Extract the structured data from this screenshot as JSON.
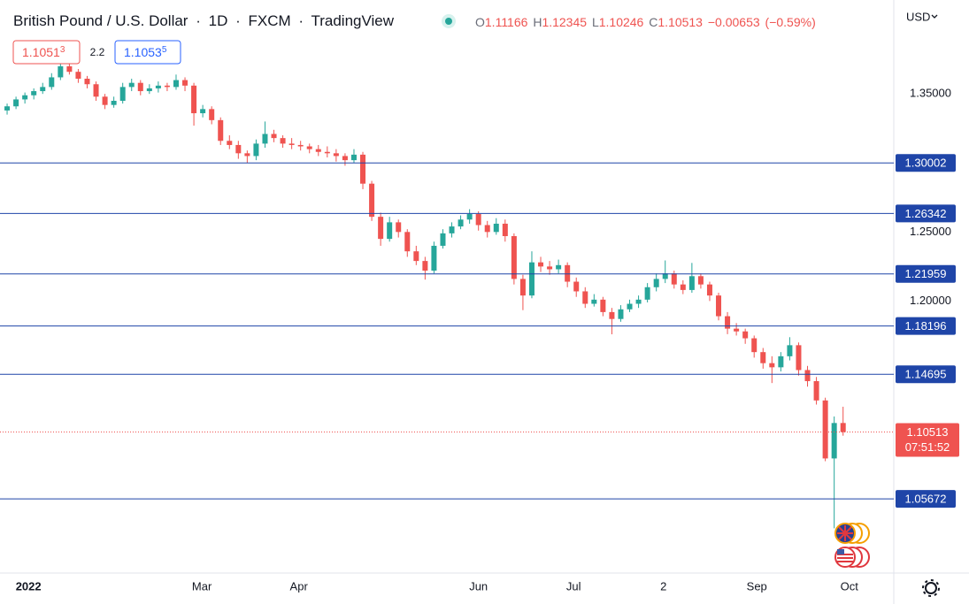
{
  "header": {
    "symbol": "British Pound / U.S. Dollar",
    "separator": "·",
    "interval": "1D",
    "exchange": "FXCM",
    "source": "TradingView",
    "open_label": "O",
    "high_label": "H",
    "low_label": "L",
    "close_label": "C",
    "change": {
      "value": -0.00653,
      "label": "−0.00653"
    },
    "change_pct": {
      "value": -0.59,
      "label": "(−0.59%)"
    },
    "sell": "1.1051",
    "sell_pip": "3",
    "spread": "2.2",
    "buy": "1.1053",
    "buy_pip": "5",
    "currency": "USD"
  },
  "chart_data": {
    "type": "candlestick",
    "open": [
      1.338,
      1.341,
      1.346,
      1.349,
      1.352,
      1.355,
      1.362,
      1.37,
      1.366,
      1.361,
      1.357,
      1.348,
      1.342,
      1.345,
      1.355,
      1.358,
      1.352,
      1.354,
      1.356,
      1.355,
      1.36,
      1.356,
      1.336,
      1.339,
      1.331,
      1.316,
      1.313,
      1.307,
      1.305,
      1.314,
      1.321,
      1.318,
      1.314,
      1.313,
      1.312,
      1.31,
      1.308,
      1.307,
      1.305,
      1.302,
      1.306,
      1.285,
      1.261,
      1.245,
      1.257,
      1.25,
      1.236,
      1.229,
      1.222,
      1.24,
      1.249,
      1.254,
      1.259,
      1.263,
      1.255,
      1.25,
      1.256,
      1.247,
      1.216,
      1.204,
      1.228,
      1.225,
      1.223,
      1.226,
      1.214,
      1.207,
      1.198,
      1.201,
      1.192,
      1.187,
      1.194,
      1.198,
      1.201,
      1.21,
      1.216,
      1.22,
      1.212,
      1.208,
      1.218,
      1.212,
      1.204,
      1.189,
      1.18,
      1.178,
      1.173,
      1.163,
      1.155,
      1.152,
      1.16,
      1.168,
      1.15,
      1.142,
      1.128,
      1.086,
      1.11166
    ],
    "high": [
      1.343,
      1.348,
      1.351,
      1.354,
      1.358,
      1.365,
      1.3749,
      1.372,
      1.368,
      1.363,
      1.359,
      1.35,
      1.348,
      1.358,
      1.361,
      1.36,
      1.357,
      1.359,
      1.358,
      1.364,
      1.362,
      1.358,
      1.342,
      1.341,
      1.333,
      1.32,
      1.316,
      1.309,
      1.317,
      1.33,
      1.324,
      1.32,
      1.318,
      1.316,
      1.314,
      1.313,
      1.312,
      1.31,
      1.307,
      1.31,
      1.308,
      1.287,
      1.264,
      1.261,
      1.259,
      1.252,
      1.24,
      1.232,
      1.243,
      1.252,
      1.257,
      1.262,
      1.2665,
      1.265,
      1.258,
      1.26,
      1.259,
      1.249,
      1.219,
      1.236,
      1.232,
      1.229,
      1.23,
      1.228,
      1.217,
      1.21,
      1.205,
      1.203,
      1.195,
      1.197,
      1.201,
      1.204,
      1.213,
      1.22,
      1.2294,
      1.222,
      1.215,
      1.2276,
      1.22,
      1.214,
      1.206,
      1.192,
      1.184,
      1.18,
      1.175,
      1.166,
      1.16,
      1.163,
      1.1738,
      1.17,
      1.153,
      1.145,
      1.13,
      1.1164,
      1.12345
    ],
    "low": [
      1.335,
      1.339,
      1.343,
      1.346,
      1.35,
      1.353,
      1.36,
      1.364,
      1.358,
      1.354,
      1.345,
      1.339,
      1.34,
      1.343,
      1.352,
      1.349,
      1.35,
      1.351,
      1.352,
      1.353,
      1.352,
      1.327,
      1.333,
      1.328,
      1.313,
      1.31,
      1.303,
      1.3,
      1.302,
      1.311,
      1.315,
      1.311,
      1.31,
      1.309,
      1.307,
      1.305,
      1.304,
      1.301,
      1.298,
      1.3,
      1.281,
      1.258,
      1.24,
      1.243,
      1.246,
      1.232,
      1.226,
      1.2155,
      1.22,
      1.238,
      1.246,
      1.252,
      1.256,
      1.251,
      1.246,
      1.248,
      1.243,
      1.212,
      1.1934,
      1.202,
      1.221,
      1.219,
      1.22,
      1.21,
      1.203,
      1.195,
      1.196,
      1.189,
      1.1759,
      1.185,
      1.192,
      1.195,
      1.199,
      1.207,
      1.213,
      1.209,
      1.205,
      1.206,
      1.209,
      1.2,
      1.186,
      1.176,
      1.175,
      1.169,
      1.159,
      1.151,
      1.1406,
      1.149,
      1.157,
      1.146,
      1.138,
      1.125,
      1.084,
      1.0354,
      1.10246
    ],
    "close": [
      1.341,
      1.346,
      1.349,
      1.352,
      1.355,
      1.362,
      1.37,
      1.366,
      1.361,
      1.357,
      1.348,
      1.342,
      1.345,
      1.355,
      1.358,
      1.352,
      1.354,
      1.356,
      1.355,
      1.36,
      1.356,
      1.336,
      1.339,
      1.331,
      1.316,
      1.313,
      1.307,
      1.305,
      1.314,
      1.321,
      1.318,
      1.314,
      1.313,
      1.312,
      1.31,
      1.308,
      1.307,
      1.305,
      1.302,
      1.306,
      1.285,
      1.261,
      1.245,
      1.257,
      1.25,
      1.236,
      1.229,
      1.222,
      1.24,
      1.249,
      1.254,
      1.259,
      1.263,
      1.255,
      1.25,
      1.256,
      1.247,
      1.216,
      1.204,
      1.228,
      1.225,
      1.223,
      1.226,
      1.214,
      1.207,
      1.198,
      1.201,
      1.192,
      1.187,
      1.194,
      1.198,
      1.201,
      1.21,
      1.216,
      1.22,
      1.212,
      1.208,
      1.218,
      1.212,
      1.204,
      1.189,
      1.18,
      1.178,
      1.173,
      1.163,
      1.155,
      1.152,
      1.16,
      1.168,
      1.15,
      1.142,
      1.128,
      1.086,
      1.11166,
      1.10513
    ],
    "up_color": "#26a69a",
    "down_color": "#ef5350",
    "xlim": [
      -0.8,
      99.7
    ],
    "xticks": [
      {
        "value": 2.4,
        "label": "2022"
      },
      {
        "value": 21.9,
        "label": "Mar"
      },
      {
        "value": 32.8,
        "label": "Apr"
      },
      {
        "value": 53.0,
        "label": "Jun"
      },
      {
        "value": 63.7,
        "label": "Jul"
      },
      {
        "value": 73.8,
        "label": "2"
      },
      {
        "value": 84.3,
        "label": "Sep"
      },
      {
        "value": 94.7,
        "label": "Oct"
      }
    ],
    "ylim": [
      1.003,
      1.418
    ],
    "yticks": [
      {
        "value": 1.35,
        "label": "1.35000"
      },
      {
        "value": 1.25,
        "label": "1.25000"
      },
      {
        "value": 1.2,
        "label": "1.20000"
      }
    ],
    "grid": false,
    "levels": [
      1.30002,
      1.26342,
      1.21959,
      1.18196,
      1.14695,
      1.05672
    ],
    "level_color": "#1f45a8",
    "countdown": "07:51:52"
  }
}
